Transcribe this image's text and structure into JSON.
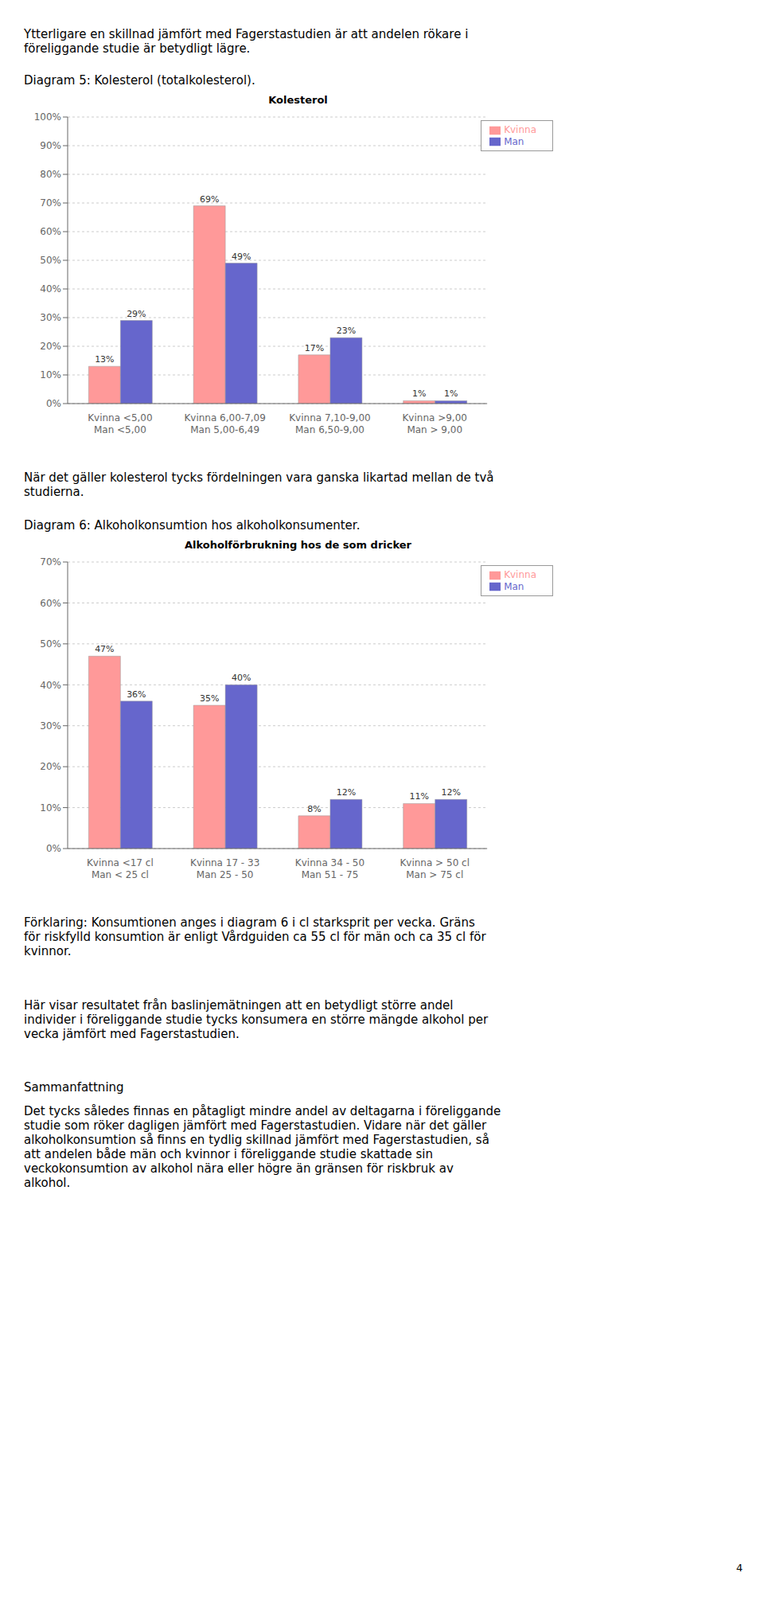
{
  "annotations": [
    "Ytterligare en skillnad jämfört med Fagerstastudien är att andelen rökare i\nföreliggande studie är betydligt lägre.",
    "Diagram 5: Kolesterol (totalkolesterol).",
    "När det gäller kolesterol tycks fördelningen vara ganska likartad mellan de två\nstudierna.",
    "Diagram 6: Alkoholkonsumtion hos alkoholkonsumenter.",
    "Förklaring: Konsumtionen anges i diagram 6 i cl starksprit per vecka. Gräns\nför riskfylld konsumtion är enligt Vårdguiden ca 55 cl för män och ca 35 cl för\nkvinnor.",
    "Här visar resultatet från baslinjemätningen att en betydligt större andel\nindivider i föreliggande studie tycks konsumera en större mängde alkohol per\nvecka jämfört med Fagerstastudien.",
    "Sammanfattning",
    "Det tycks således finnas en påtagligt mindre andel av deltagarna i föreliggande\nstudie som röker dagligen jämfört med Fagerstastudien. Vidare när det gäller\nalkoholkonsumtion så finns en tydlig skillnad jämfört med Fagerstastudien, så\natt andelen både män och kvinnor i föreliggande studie skattade sin\nveckokonsumtion av alkohol nära eller högre än gränsen för riskbruk av\nalkohol.",
    "4"
  ],
  "chart_data": [
    {
      "type": "bar",
      "title": "Kolesterol",
      "categories": [
        "Kvinna <5,00\nMan <5,00",
        "Kvinna 6,00-7,09\nMan 5,00-6,49",
        "Kvinna 7,10-9,00\nMan 6,50-9,00",
        "Kvinna >9,00\nMan > 9,00"
      ],
      "series": [
        {
          "name": "Kvinna",
          "color": "#ff9999",
          "values": [
            13,
            69,
            17,
            1
          ],
          "value_labels": [
            "13%",
            "69%",
            "17%",
            "1%"
          ]
        },
        {
          "name": "Man",
          "color": "#6666cc",
          "values": [
            29,
            49,
            23,
            1
          ],
          "value_labels": [
            "29%",
            "49%",
            "23%",
            "1%"
          ]
        }
      ],
      "ylim": [
        0,
        100
      ],
      "yticks": [
        {
          "value": 0,
          "label": "0%"
        },
        {
          "value": 10,
          "label": "10%"
        },
        {
          "value": 20,
          "label": "20%"
        },
        {
          "value": 30,
          "label": "30%"
        },
        {
          "value": 40,
          "label": "40%"
        },
        {
          "value": 50,
          "label": "50%"
        },
        {
          "value": 60,
          "label": "60%"
        },
        {
          "value": 70,
          "label": "70%"
        },
        {
          "value": 80,
          "label": "80%"
        },
        {
          "value": 90,
          "label": "90%"
        },
        {
          "value": 100,
          "label": "100%"
        }
      ],
      "grid": true,
      "legend": "upper right",
      "data_labels": true
    },
    {
      "type": "bar",
      "title": "Alkoholförbrukning hos de som dricker",
      "categories": [
        "Kvinna <17 cl\nMan < 25 cl",
        "Kvinna 17 - 33\nMan 25 - 50",
        "Kvinna 34 - 50\nMan 51 - 75",
        "Kvinna > 50 cl\nMan > 75 cl"
      ],
      "series": [
        {
          "name": "Kvinna",
          "color": "#ff9999",
          "values": [
            47,
            35,
            8,
            11
          ],
          "value_labels": [
            "47%",
            "35%",
            "8%",
            "11%"
          ]
        },
        {
          "name": "Man",
          "color": "#6666cc",
          "values": [
            36,
            40,
            12,
            12
          ],
          "value_labels": [
            "36%",
            "40%",
            "12%",
            "12%"
          ]
        }
      ],
      "ylim": [
        0,
        70
      ],
      "yticks": [
        {
          "value": 0,
          "label": "0%"
        },
        {
          "value": 10,
          "label": "10%"
        },
        {
          "value": 20,
          "label": "20%"
        },
        {
          "value": 30,
          "label": "30%"
        },
        {
          "value": 40,
          "label": "40%"
        },
        {
          "value": 50,
          "label": "50%"
        },
        {
          "value": 60,
          "label": "60%"
        },
        {
          "value": 70,
          "label": "70%"
        }
      ],
      "grid": true,
      "legend": "upper right",
      "data_labels": true
    }
  ]
}
